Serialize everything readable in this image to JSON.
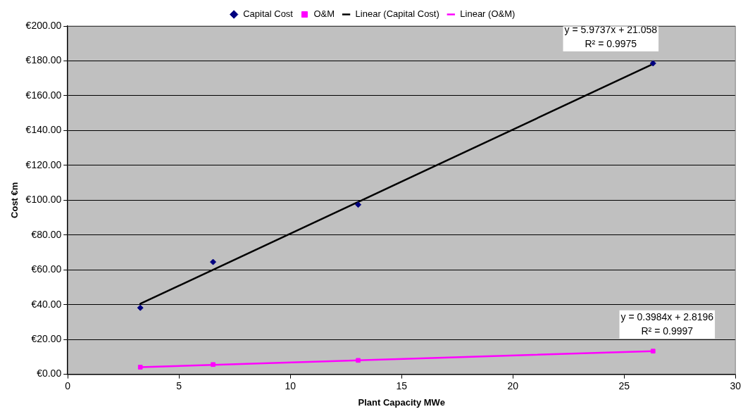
{
  "chart_data": {
    "type": "scatter",
    "xlabel": "Plant Capacity MWe",
    "ylabel": "Cost €m",
    "series": [
      {
        "name": "Capital Cost",
        "type": "scatter",
        "color": "#000080",
        "marker": "diamond",
        "x": [
          3.26,
          6.53,
          13.05,
          26.3
        ],
        "values": [
          38.2,
          64.5,
          97.4,
          178.6
        ]
      },
      {
        "name": "O&M",
        "type": "scatter",
        "color": "#ff00ff",
        "marker": "square",
        "x": [
          3.26,
          6.53,
          13.05,
          26.3
        ],
        "values": [
          4.1,
          5.6,
          8.0,
          13.3
        ]
      },
      {
        "name": "Linear (Capital Cost)",
        "type": "line",
        "color": "#000000",
        "marker": "none",
        "x": [
          3.26,
          26.3
        ],
        "values": [
          40.5,
          178.2
        ]
      },
      {
        "name": "Linear (O&M)",
        "type": "line",
        "color": "#ff00ff",
        "marker": "none",
        "x": [
          3.26,
          26.3
        ],
        "values": [
          4.1,
          13.3
        ]
      }
    ],
    "xlim": [
      0,
      30
    ],
    "xticks": [
      0,
      5,
      10,
      15,
      20,
      25,
      30
    ],
    "ylim": [
      0,
      200
    ],
    "yticks": [
      {
        "value": 0,
        "label": "€0.00"
      },
      {
        "value": 20,
        "label": "€20.00"
      },
      {
        "value": 40,
        "label": "€40.00"
      },
      {
        "value": 60,
        "label": "€60.00"
      },
      {
        "value": 80,
        "label": "€80.00"
      },
      {
        "value": 100,
        "label": "€100.00"
      },
      {
        "value": 120,
        "label": "€120.00"
      },
      {
        "value": 140,
        "label": "€140.00"
      },
      {
        "value": 160,
        "label": "€160.00"
      },
      {
        "value": 180,
        "label": "€180.00"
      },
      {
        "value": 200,
        "label": "€200.00"
      }
    ],
    "grid": "y",
    "legend": "top",
    "annotations": [
      "y = 5.9737x + 21.058\nR² = 0.9975",
      "y = 0.3984x + 2.8196\nR² = 0.9997"
    ]
  }
}
